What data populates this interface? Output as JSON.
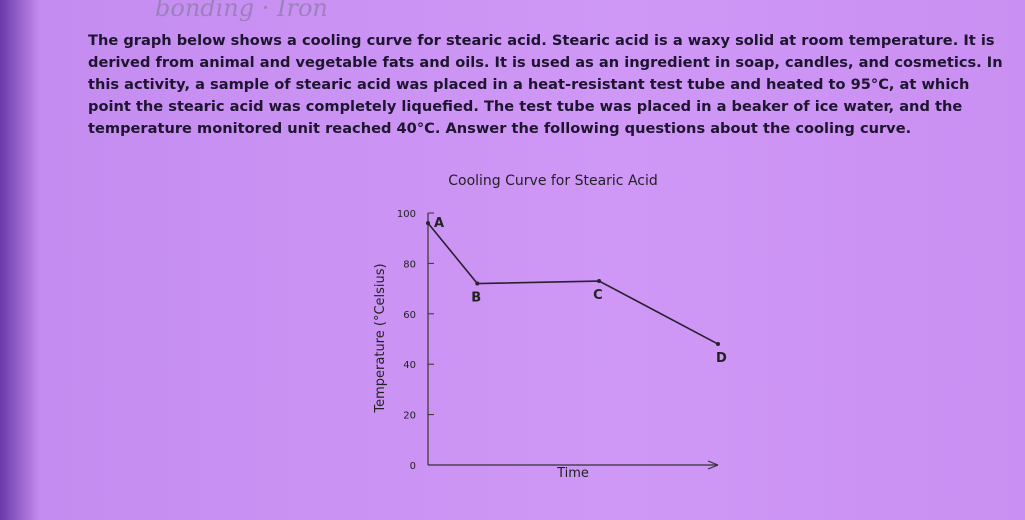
{
  "handwriting": "bonding · Iron",
  "paragraph_lines": [
    "The graph below shows a cooling curve for stearic acid.  Stearic acid is a waxy solid at room temperature.  It is",
    "derived from animal and vegetable fats and oils.  It is used as an ingredient in soap, candles, and cosmetics.  In",
    "this activity, a sample of stearic acid was placed in a heat-resistant test tube and heated to 95°C, at which",
    "point the stearic acid was completely liquefied.  The test tube was placed in a beaker of ice water, and the",
    "temperature monitored unit reached 40°C.  Answer the following questions about the cooling curve."
  ],
  "chart_data": {
    "type": "line",
    "title": "Cooling Curve for Stearic Acid",
    "x_label": "Time",
    "y_label": "Temperature (°Celsius)",
    "x": [
      0,
      17,
      59,
      100
    ],
    "xlim": [
      0,
      100
    ],
    "point_labels": [
      "A",
      "B",
      "C",
      "D"
    ],
    "series": [
      {
        "values": [
          96,
          72,
          73,
          48
        ],
        "color": "#2a2030"
      }
    ],
    "ylim": [
      0,
      100
    ],
    "yticks": [
      0,
      20,
      40,
      60,
      80,
      100
    ]
  }
}
